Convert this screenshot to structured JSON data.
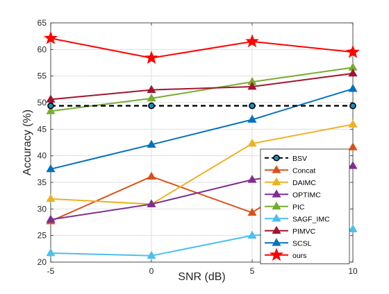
{
  "chart_data": {
    "type": "line",
    "xlabel": "SNR (dB)",
    "ylabel": "Accuracy (%)",
    "x": [
      -5,
      0,
      5,
      10
    ],
    "xticks": [
      -5,
      0,
      5,
      10
    ],
    "xlim": [
      -5,
      10
    ],
    "ylim": [
      20,
      65
    ],
    "yticks": [
      20,
      25,
      30,
      35,
      40,
      45,
      50,
      55,
      60,
      65
    ],
    "grid": true,
    "legend_position": "lower-right",
    "series": [
      {
        "name": "BSV",
        "values": [
          49.4,
          49.4,
          49.4,
          49.4
        ],
        "color": "#000000",
        "marker": "circle",
        "dashed": true,
        "marker_fill": "#1a8fc4"
      },
      {
        "name": "Concat",
        "values": [
          27.7,
          36.1,
          29.3,
          41.6
        ],
        "color": "#d95319",
        "marker": "triangle"
      },
      {
        "name": "DAIMC",
        "values": [
          31.9,
          30.9,
          42.3,
          45.9
        ],
        "color": "#edb120",
        "marker": "triangle"
      },
      {
        "name": "OPTIMC",
        "values": [
          28.0,
          30.9,
          35.5,
          38.1
        ],
        "color": "#7e2f8e",
        "marker": "triangle"
      },
      {
        "name": "PIC",
        "values": [
          48.4,
          50.8,
          53.9,
          56.6
        ],
        "color": "#77ac30",
        "marker": "triangle"
      },
      {
        "name": "SAGF_IMC",
        "values": [
          21.7,
          21.2,
          25.0,
          26.2
        ],
        "color": "#4dbeee",
        "marker": "triangle"
      },
      {
        "name": "PIMVC",
        "values": [
          50.6,
          52.4,
          53.0,
          55.5
        ],
        "color": "#a2142f",
        "marker": "triangle"
      },
      {
        "name": "SCSL",
        "values": [
          37.5,
          42.1,
          46.8,
          52.6
        ],
        "color": "#0072bd",
        "marker": "triangle"
      },
      {
        "name": "ours",
        "values": [
          62.1,
          58.4,
          61.5,
          59.5
        ],
        "color": "#ff0000",
        "marker": "star"
      }
    ]
  }
}
